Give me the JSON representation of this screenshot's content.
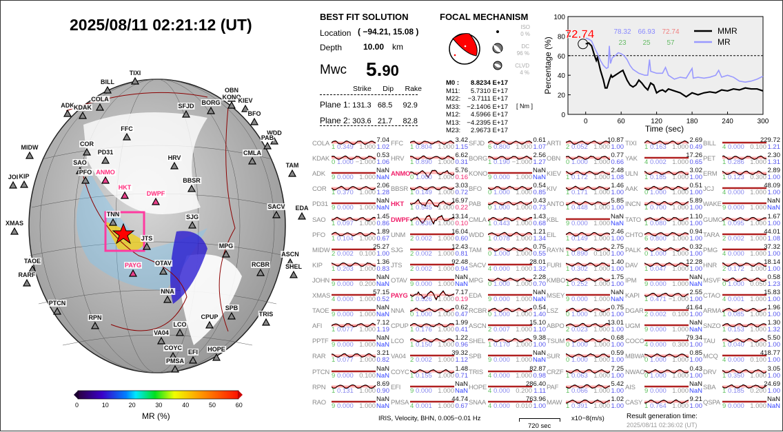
{
  "title": "2025/08/11  02:21:12 (UT)",
  "best_fit": {
    "heading": "BEST FIT SOLUTION",
    "location_label": "Location",
    "location_value": "( −94.21,  15.08 )",
    "depth_label": "Depth",
    "depth_value": "10.00",
    "depth_unit": "km",
    "mw_label": "Mwc",
    "mw_int": "5.",
    "mw_dec": "90",
    "col_headers": [
      "Strike",
      "Dip",
      "Rake"
    ],
    "planes": [
      {
        "label": "Plane 1:",
        "strike": "131.3",
        "dip": "68.5",
        "rake": "92.9"
      },
      {
        "label": "Plane 2:",
        "strike": "303.6",
        "dip": "21.7",
        "rake": "82.8"
      }
    ]
  },
  "focal": {
    "heading": "FOCAL MECHANISM",
    "iso_label": "ISO",
    "iso_value": "0 %",
    "dc_label": "DC",
    "dc_value": "96 %",
    "clvd_label": "CLVD",
    "clvd_value": "4 %",
    "unit": "[ Nm ]",
    "moments": [
      {
        "k": "M0  :",
        "v": "8.8234 E+17"
      },
      {
        "k": "M11:",
        "v": "5.7310 E+17"
      },
      {
        "k": "M22:",
        "v": "−3.7111 E+17"
      },
      {
        "k": "M33:",
        "v": "−2.1406 E+17"
      },
      {
        "k": "M12:",
        "v": "4.5966 E+17"
      },
      {
        "k": "M13:",
        "v": "−4.2395 E+17"
      },
      {
        "k": "M23:",
        "v": "2.9673 E+17"
      }
    ]
  },
  "chart_data": {
    "type": "line",
    "xlabel": "Time (sec)",
    "ylabel": "Percentage (%)",
    "xlim": [
      -30,
      300
    ],
    "ylim": [
      0,
      100
    ],
    "xticks": [
      0,
      60,
      120,
      180,
      240,
      300
    ],
    "yticks": [
      0,
      20,
      40,
      60,
      80,
      100
    ],
    "threshold": 60,
    "annotation": "72.74",
    "top_values": [
      "78.32",
      "66.93",
      "72.74"
    ],
    "top_counts": [
      "23",
      "25",
      "57"
    ],
    "series": [
      {
        "name": "MMR",
        "color": "#000000",
        "x": [
          0,
          5,
          10,
          15,
          18,
          20,
          25,
          30,
          33,
          36,
          40,
          43,
          45,
          50,
          55,
          60,
          63,
          65,
          70,
          75,
          80,
          85,
          90,
          95,
          100,
          105,
          110,
          115,
          120,
          125,
          130,
          135,
          140,
          150,
          160,
          170,
          175,
          180,
          190,
          200,
          210,
          220,
          230,
          240,
          250,
          260,
          270,
          280,
          290,
          300
        ],
        "y": [
          72,
          73,
          70,
          60,
          55,
          58,
          45,
          35,
          27,
          27,
          35,
          40,
          38,
          40,
          42,
          44,
          45,
          42,
          35,
          30,
          28,
          30,
          35,
          32,
          28,
          25,
          32,
          30,
          22,
          24,
          25,
          23,
          26,
          24,
          22,
          18,
          20,
          22,
          20,
          22,
          23,
          22,
          25,
          24,
          26,
          25,
          27,
          26,
          26,
          24
        ]
      },
      {
        "name": "MR",
        "color": "#9999ff",
        "x": [
          0,
          5,
          10,
          15,
          20,
          25,
          30,
          35,
          38,
          40,
          42,
          45,
          50,
          55,
          60,
          65,
          70,
          75,
          80,
          90,
          100,
          105,
          108,
          110,
          120,
          130,
          135,
          140,
          150,
          160,
          170,
          180,
          182,
          190,
          200,
          210,
          220,
          225,
          230,
          240,
          250,
          260,
          270,
          280,
          290,
          300
        ],
        "y": [
          78,
          77,
          75,
          68,
          62,
          55,
          50,
          47,
          48,
          70,
          52,
          58,
          60,
          63,
          62,
          60,
          56,
          50,
          46,
          42,
          40,
          40,
          56,
          44,
          42,
          42,
          48,
          40,
          36,
          38,
          37,
          47,
          37,
          38,
          37,
          38,
          40,
          45,
          38,
          40,
          38,
          34,
          33,
          34,
          36,
          39
        ]
      }
    ]
  },
  "map": {
    "colorbar_label": "MR (%)",
    "colorbar_ticks": [
      "0",
      "10",
      "20",
      "30",
      "40",
      "50",
      "60"
    ],
    "stations": [
      "TIXI",
      "BILL",
      "COLA",
      "ADK",
      "KDAK",
      "SFJD",
      "BORG",
      "OBN",
      "KONO",
      "KIEV",
      "BFO",
      "WDD",
      "PAB",
      "FFC",
      "CMLA",
      "MIDW",
      "COR",
      "PD31",
      "HRV",
      "TAM",
      "SAO",
      "PFO",
      "ANMO",
      "JOI",
      "KIP",
      "BBSR",
      "HKT",
      "DWPF",
      "SACV",
      "EDA",
      "SJG",
      "XMAS",
      "TNN",
      "JTS",
      "MPG",
      "TAOE",
      "RARF",
      "PAYG",
      "OTAV",
      "ASCN",
      "SHEL",
      "RCBR",
      "NNA",
      "PTCN",
      "SPB",
      "TRIS",
      "CPUP",
      "RPN",
      "LCO",
      "VA04",
      "COYC",
      "EFI",
      "HOPE",
      "PMSA"
    ],
    "highlighted": [
      "ANMO",
      "HKT",
      "DWPF",
      "PAYG"
    ]
  },
  "waveforms": {
    "columns": [
      [
        [
          "COLA",
          "7.04",
          "1",
          "0.349",
          "1.000",
          "1.02"
        ],
        [
          "KDAK",
          "0.53",
          "0",
          "1.000",
          "−1.000",
          "1.06"
        ],
        [
          "ADK",
          "NaN",
          "9",
          "0.000",
          "1.000",
          "NaN"
        ],
        [
          "COR",
          "2.06",
          "1",
          "0.370",
          "1.000",
          "1.28"
        ],
        [
          "PD31",
          "NaN",
          "9",
          "0.000",
          "1.000",
          "NaN"
        ],
        [
          "SAO",
          "1.45",
          "1",
          "0.097",
          "1.000",
          "0.86"
        ],
        [
          "PFO",
          "1.89",
          "1",
          "0.104",
          "1.000",
          "0.67"
        ],
        [
          "MIDW",
          "25.27",
          "2",
          "0.002",
          "0.100",
          "1.00"
        ],
        [
          "KIP",
          "1.36",
          "1",
          "0.203",
          "1.000",
          "0.83"
        ],
        [
          "JOHN",
          "NaN",
          "9",
          "0.000",
          "0.200",
          "NaN"
        ],
        [
          "XMAS",
          "57.15",
          "4",
          "0.000",
          "1.000",
          "0.52"
        ],
        [
          "TAOE",
          "NaN",
          "9",
          "0.000",
          "1.000",
          "NaN"
        ],
        [
          "AFI",
          "7.12",
          "1",
          "0.077",
          "1.000",
          "1.19"
        ],
        [
          "PPTF",
          "NaN",
          "9",
          "0.000",
          "1.000",
          "NaN"
        ],
        [
          "RAR",
          "3.21",
          "1",
          "0.077",
          "1.000",
          "0.82"
        ],
        [
          "PTCN",
          "NaN",
          "9",
          "0.000",
          "0.100",
          "NaN"
        ],
        [
          "RPN",
          "8.69",
          "1",
          "0.131",
          "1.000",
          "0.90"
        ],
        [
          "RAO",
          "NaN",
          "9",
          "0.000",
          "1.000",
          "NaN"
        ]
      ],
      [
        [
          "FFC",
          "3.42",
          "1",
          "0.804",
          "1.000",
          "1.15"
        ],
        [
          "HRV",
          "6.62",
          "1",
          "0.890",
          "1.000",
          "0.31"
        ],
        [
          "ANMO",
          "5.76",
          "0",
          "1.000",
          "1.000",
          "0.16"
        ],
        [
          "BBSR",
          "3.03",
          "1",
          "0.149",
          "1.000",
          "0.72"
        ],
        [
          "HKT",
          "16.97",
          "1",
          "0.545",
          "1.000",
          "0.22"
        ],
        [
          "DWPF",
          "13.14",
          "1",
          "0.836",
          "1.000",
          "0.10"
        ],
        [
          "UNM",
          "16.04",
          "2",
          "0.002",
          "1.000",
          "0.60"
        ],
        [
          "SJG",
          "12.43",
          "2",
          "0.002",
          "1.000",
          "0.81"
        ],
        [
          "JTS",
          "92.48",
          "2",
          "0.002",
          "1.000",
          "0.94"
        ],
        [
          "OTAV",
          "NaN",
          "9",
          "0.000",
          "1.000",
          "NaN"
        ],
        [
          "PAYG",
          "7.17",
          "1",
          "0.526",
          "1.000",
          "0.19"
        ],
        [
          "NNA",
          "0.62",
          "0",
          "1.000",
          "1.000",
          "0.47"
        ],
        [
          "CPUP",
          "1.99",
          "1",
          "0.176",
          "1.000",
          "0.41"
        ],
        [
          "LCO",
          "1.22",
          "1",
          "0.150",
          "1.000",
          "0.96"
        ],
        [
          "VA04",
          "39.32",
          "2",
          "0.002",
          "1.000",
          "1.12"
        ],
        [
          "COYC",
          "1.48",
          "1",
          "0.155",
          "1.000",
          "0.71"
        ],
        [
          "EFI",
          "NaN",
          "9",
          "0.000",
          "1.000",
          "NaN"
        ],
        [
          "PMSA",
          "44.74",
          "4",
          "0.001",
          "1.000",
          "0.67"
        ]
      ],
      [
        [
          "SFJD",
          "0.61",
          "6",
          "0.800",
          "1.000",
          "1.07"
        ],
        [
          "BORG",
          "2.56",
          "1",
          "0.190",
          "−1.000",
          "1.27"
        ],
        [
          "KONO",
          "NaN",
          "9",
          "0.000",
          "1.000",
          "NaN"
        ],
        [
          "BFO",
          "0.54",
          "0",
          "1.000",
          "1.000",
          "0.85"
        ],
        [
          "PAB",
          "0.43",
          "0",
          "1.000",
          "1.000",
          "0.73"
        ],
        [
          "CMLA",
          "1.43",
          "1",
          "0.443",
          "1.000",
          "0.68"
        ],
        [
          "WDD",
          "1.21",
          "1",
          "0.078",
          "1.000",
          "1.34"
        ],
        [
          "TAM",
          "0.75",
          "0",
          "1.000",
          "1.000",
          "0.55"
        ],
        [
          "SACV",
          "28.01",
          "4",
          "0.000",
          "1.000",
          "1.32"
        ],
        [
          "MPG",
          "2.28",
          "0",
          "1.000",
          "1.000",
          "0.70"
        ],
        [
          "EDA",
          "NaN",
          "9",
          "0.000",
          "1.000",
          "NaN"
        ],
        [
          "RCBR",
          "0.54",
          "0",
          "1.000",
          "1.000",
          "1.40"
        ],
        [
          "ASCN",
          "15.10",
          "2",
          "0.007",
          "1.000",
          "1.10"
        ],
        [
          "SHEL",
          "9.38",
          "1",
          "0.170",
          "1.000",
          "1.00"
        ],
        [
          "SPB",
          "NaN",
          "9",
          "0.000",
          "1.000",
          "NaN"
        ],
        [
          "TRIS",
          "82.87",
          "4",
          "0.000",
          "1.000",
          "0.98"
        ],
        [
          "HOPE",
          "286.40",
          "4",
          "0.000",
          "0.200",
          "1.11"
        ],
        [
          "SNAA",
          "763.96",
          "4",
          "0.000",
          "0.010",
          "1.00"
        ]
      ],
      [
        [
          "ARTI",
          "10.87",
          "2",
          "0.052",
          "1.000",
          "1.00"
        ],
        [
          "OBN",
          "0.77",
          "0",
          "1.000",
          "1.000",
          "0.66"
        ],
        [
          "KIEV",
          "2.48",
          "1",
          "0.172",
          "1.000",
          "1.08"
        ],
        [
          "KIV",
          "1.46",
          "1",
          "0.171",
          "1.000",
          "1.00"
        ],
        [
          "ANTO",
          "5.85",
          "1",
          "0.448",
          "1.000",
          "1.00"
        ],
        [
          "KBL",
          "NaN",
          "9",
          "0.000",
          "1.000",
          "NaN"
        ],
        [
          "EIL",
          "2.46",
          "1",
          "0.149",
          "1.000",
          "1.00"
        ],
        [
          "RAYN",
          "2.75",
          "1",
          "0.890",
          "0.100",
          "1.00"
        ],
        [
          "FURI",
          "1.40",
          "1",
          "0.302",
          "1.000",
          "1.00"
        ],
        [
          "KMBO",
          "1.75",
          "1",
          "0.252",
          "1.000",
          "1.00"
        ],
        [
          "MSEY",
          "NaN",
          "9",
          "0.000",
          "1.000",
          "NaN"
        ],
        [
          "LSZ",
          "0.75",
          "0",
          "1.000",
          "1.000",
          "1.00"
        ],
        [
          "ABPO",
          "13.01",
          "2",
          "0.023",
          "1.000",
          "1.00"
        ],
        [
          "TSUM",
          "0.68",
          "0",
          "1.000",
          "1.000",
          "1.00"
        ],
        [
          "SUR",
          "0.59",
          "0",
          "1.000",
          "1.000",
          "1.00"
        ],
        [
          "CRZF",
          "7.25",
          "1",
          "0.063",
          "1.000",
          "1.00"
        ],
        [
          "PAF",
          "5.42",
          "1",
          "0.066",
          "1.000",
          "1.00"
        ],
        [
          "MAW",
          "1.02",
          "1",
          "0.391",
          "1.000",
          "1.00"
        ]
      ],
      [
        [
          "TIXI",
          "2.69",
          "1",
          "0.163",
          "1.000",
          "0.49"
        ],
        [
          "YAK",
          "17.26",
          "4",
          "0.002",
          "1.000",
          "0.65"
        ],
        [
          "ULN",
          "3.02",
          "1",
          "0.185",
          "1.000",
          "1.00"
        ],
        [
          "AAK",
          "0.51",
          "0",
          "1.000",
          "1.000",
          "1.00"
        ],
        [
          "INCN",
          "5.89",
          "1",
          "0.700",
          "1.000",
          "1.00"
        ],
        [
          "TATO",
          "1.10",
          "1",
          "0.080",
          "1.000",
          "1.00"
        ],
        [
          "CHTO",
          "0.94",
          "6",
          "0.800",
          "1.000",
          "1.00"
        ],
        [
          "PALK",
          "0.32",
          "0",
          "1.000",
          "1.000",
          "1.00"
        ],
        [
          "DAV",
          "12.28",
          "1",
          "0.047",
          "1.000",
          "1.00"
        ],
        [
          "IPM",
          "NaN",
          "9",
          "0.000",
          "1.000",
          "NaN"
        ],
        [
          "KAPI",
          "2.55",
          "1",
          "0.471",
          "−1.000",
          "1.00"
        ],
        [
          "DGAR",
          "41.64",
          "2",
          "0.002",
          "0.100",
          "1.00"
        ],
        [
          "UGM",
          "NaN",
          "9",
          "0.000",
          "1.000",
          "NaN"
        ],
        [
          "COCO",
          "79.34",
          "4",
          "0.000",
          "0.300",
          "1.00"
        ],
        [
          "MBWA",
          "0.85",
          "0",
          "1.000",
          "1.000",
          "1.00"
        ],
        [
          "NWAO",
          "0.43",
          "0",
          "1.000",
          "1.000",
          "1.00"
        ],
        [
          "AIS",
          "NaN",
          "9",
          "0.000",
          "1.000",
          "NaN"
        ],
        [
          "CASY",
          "9.21",
          "1",
          "0.764",
          "1.000",
          "1.00"
        ]
      ],
      [
        [
          "BILL",
          "229.72",
          "4",
          "0.000",
          "0.100",
          "1.21"
        ],
        [
          "PET",
          "2.30",
          "1",
          "0.286",
          "1.000",
          "1.31"
        ],
        [
          "ERM",
          "2.89",
          "1",
          "0.123",
          "0.300",
          "1.00"
        ],
        [
          "JCJ",
          "48.09",
          "4",
          "0.000",
          "1.000",
          "1.00"
        ],
        [
          "WAKE",
          "NaN",
          "9",
          "0.000",
          "1.000",
          "NaN"
        ],
        [
          "GUMO",
          "1.67",
          "1",
          "0.095",
          "1.000",
          "1.00"
        ],
        [
          "TARA",
          "44.01",
          "2",
          "0.002",
          "1.000",
          "1.08"
        ],
        [
          "PMG",
          "37.32",
          "4",
          "0.000",
          "1.000",
          "1.00"
        ],
        [
          "HNR",
          "18.14",
          "2",
          "0.172",
          "1.000",
          "1.00"
        ],
        [
          "MSVF",
          "0.58",
          "0",
          "1.000",
          "0.050",
          "1.23"
        ],
        [
          "CTAO",
          "15.83",
          "4",
          "0.001",
          "1.000",
          "1.00"
        ],
        [
          "ARMA",
          "1.96",
          "1",
          "0.085",
          "1.000",
          "1.00"
        ],
        [
          "SNZO",
          "1.30",
          "1",
          "0.153",
          "1.000",
          "1.32"
        ],
        [
          "TAU",
          "5.50",
          "1",
          "0.040",
          "1.000",
          "1.00"
        ],
        [
          "MCQ",
          "418.77",
          "4",
          "0.000",
          "0.100",
          "1.00"
        ],
        [
          "DRV",
          "3.05",
          "1",
          "0.350",
          "1.000",
          "1.00"
        ],
        [
          "SBA",
          "24.69",
          "1",
          "0.185",
          "0.200",
          "1.00"
        ],
        [
          "QSPA",
          "NaN",
          "9",
          "0.000",
          "1.000",
          "NaN"
        ]
      ]
    ]
  },
  "footer": {
    "source": "IRIS, Velocity,   BHN,  0.005−0.01 Hz",
    "scale": "720 sec",
    "units": "x10−8(m/s)",
    "gen_label": "Result generation time:",
    "gen_time": "2025/08/11 02:36:02 (UT)"
  }
}
